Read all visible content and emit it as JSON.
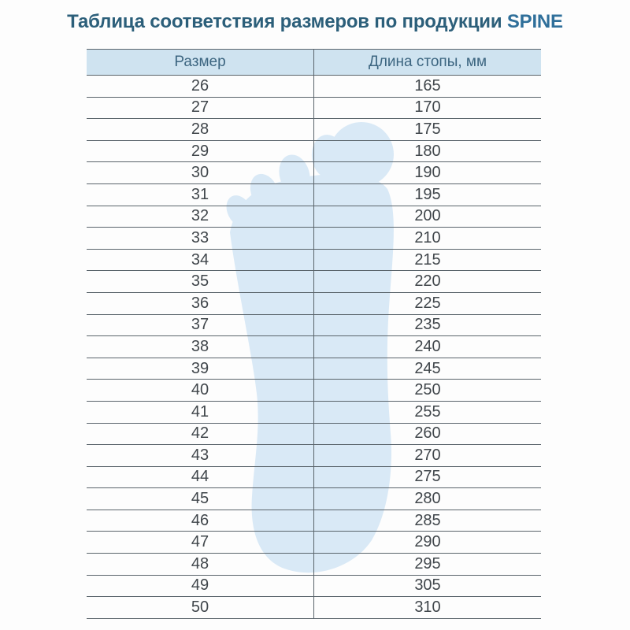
{
  "title": {
    "main": "Таблица соответствия размеров по продукции",
    "brand": "SPINE"
  },
  "table": {
    "columns": [
      "Размер",
      "Длина стопы, мм"
    ],
    "rows": [
      [
        "26",
        "165"
      ],
      [
        "27",
        "170"
      ],
      [
        "28",
        "175"
      ],
      [
        "29",
        "180"
      ],
      [
        "30",
        "190"
      ],
      [
        "31",
        "195"
      ],
      [
        "32",
        "200"
      ],
      [
        "33",
        "210"
      ],
      [
        "34",
        "215"
      ],
      [
        "35",
        "220"
      ],
      [
        "36",
        "225"
      ],
      [
        "37",
        "235"
      ],
      [
        "38",
        "240"
      ],
      [
        "39",
        "245"
      ],
      [
        "40",
        "250"
      ],
      [
        "41",
        "255"
      ],
      [
        "42",
        "260"
      ],
      [
        "43",
        "270"
      ],
      [
        "44",
        "275"
      ],
      [
        "45",
        "280"
      ],
      [
        "46",
        "285"
      ],
      [
        "47",
        "290"
      ],
      [
        "48",
        "295"
      ],
      [
        "49",
        "305"
      ],
      [
        "50",
        "310"
      ]
    ]
  },
  "watermark": {
    "icon": "footprint-icon",
    "color": "#d9e9f6"
  },
  "colors": {
    "title_text": "#2c5f7a",
    "brand_text": "#2f6f9a",
    "header_background": "#cfe3f0",
    "header_text": "#3c6580",
    "cell_text": "#40464b",
    "grid_line": "#5a646b",
    "page_background": "#fdfdfd"
  }
}
